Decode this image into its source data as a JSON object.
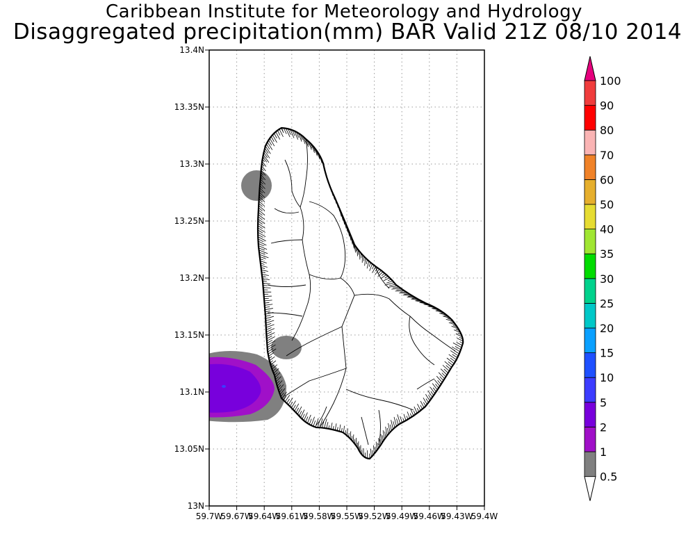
{
  "title_line1": "Caribbean Institute for Meteorology and Hydrology",
  "title_line2": "Disaggregated precipitation(mm) BAR Valid 21Z 08/10 2014",
  "map": {
    "lat_range": [
      13.0,
      13.4
    ],
    "lon_range": [
      -59.7,
      -59.4
    ],
    "y_ticks": [
      {
        "value": 13.0,
        "label": "13N"
      },
      {
        "value": 13.05,
        "label": "13.05N"
      },
      {
        "value": 13.1,
        "label": "13.1N"
      },
      {
        "value": 13.15,
        "label": "13.15N"
      },
      {
        "value": 13.2,
        "label": "13.2N"
      },
      {
        "value": 13.25,
        "label": "13.25N"
      },
      {
        "value": 13.3,
        "label": "13.3N"
      },
      {
        "value": 13.35,
        "label": "13.35N"
      },
      {
        "value": 13.4,
        "label": "13.4N"
      }
    ],
    "x_ticks": [
      {
        "value": -59.7,
        "label": "59.7W"
      },
      {
        "value": -59.67,
        "label": "59.67W"
      },
      {
        "value": -59.64,
        "label": "59.64W"
      },
      {
        "value": -59.61,
        "label": "59.61W"
      },
      {
        "value": -59.58,
        "label": "59.58W"
      },
      {
        "value": -59.55,
        "label": "59.55W"
      },
      {
        "value": -59.52,
        "label": "59.52W"
      },
      {
        "value": -59.49,
        "label": "59.49W"
      },
      {
        "value": -59.46,
        "label": "59.46W"
      },
      {
        "value": -59.43,
        "label": "59.43W"
      },
      {
        "value": -59.4,
        "label": "59.4W"
      }
    ],
    "grid": "dotted",
    "island": "Barbados"
  },
  "colorbar": {
    "labels": [
      "0.5",
      "1",
      "2",
      "5",
      "10",
      "15",
      "20",
      "25",
      "30",
      "35",
      "40",
      "50",
      "60",
      "70",
      "80",
      "90",
      "100"
    ],
    "colors": [
      "#808080",
      "#a010c8",
      "#7800dc",
      "#3c3cff",
      "#1e50ff",
      "#0aa0ff",
      "#00c8c8",
      "#00d28c",
      "#00dc00",
      "#a0e632",
      "#e6dc32",
      "#e6af2d",
      "#f08228",
      "#fab4b4",
      "#ff0000",
      "#f03c3c",
      "#e6007d"
    ],
    "under_color": "#ffffff",
    "over_color": "#e6007d"
  },
  "precip_areas": [
    {
      "description_level": "0.5",
      "color": "#808080"
    },
    {
      "description_level": "1",
      "color": "#a010c8"
    },
    {
      "description_level": "2",
      "color": "#7800dc"
    }
  ]
}
